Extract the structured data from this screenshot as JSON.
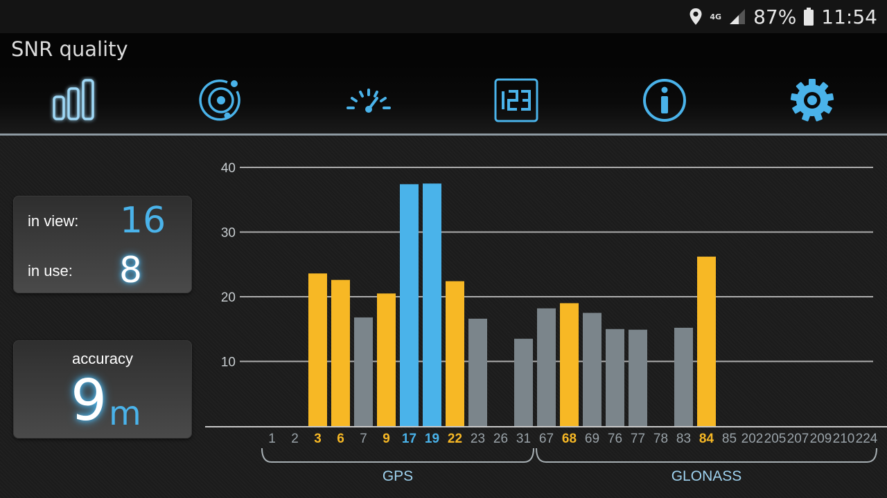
{
  "status_bar": {
    "network": "4G",
    "battery": "87%",
    "time": "11:54",
    "icons": [
      "location-icon",
      "signal-icon",
      "battery-icon"
    ]
  },
  "title": "SNR quality",
  "toolbar": {
    "tabs": [
      {
        "name": "snr-bars-icon",
        "active": true
      },
      {
        "name": "satellite-radar-icon",
        "active": false
      },
      {
        "name": "speedometer-icon",
        "active": false
      },
      {
        "name": "digits-123-icon",
        "active": false
      },
      {
        "name": "info-icon",
        "active": false
      },
      {
        "name": "settings-gear-icon",
        "active": false
      }
    ],
    "accent": "#4ab3ea"
  },
  "stats": {
    "in_view_label": "in view:",
    "in_view_value": "16",
    "in_use_label": "in use:",
    "in_use_value": "8"
  },
  "accuracy": {
    "label": "accuracy",
    "value": "9",
    "unit": "m"
  },
  "chart_data": {
    "type": "bar",
    "y_ticks": [
      10,
      20,
      30,
      40
    ],
    "ylim": [
      0,
      40
    ],
    "grid": true,
    "categories": [
      "1",
      "2",
      "3",
      "6",
      "7",
      "9",
      "17",
      "19",
      "22",
      "23",
      "26",
      "31",
      "67",
      "68",
      "69",
      "76",
      "77",
      "78",
      "83",
      "84",
      "85",
      "202",
      "205",
      "207",
      "209",
      "210",
      "224"
    ],
    "values": [
      0,
      0,
      23.6,
      22.6,
      16.8,
      20.5,
      37.4,
      37.5,
      22.4,
      16.6,
      0,
      13.5,
      18.2,
      19,
      17.5,
      15,
      14.9,
      0,
      15.2,
      26.2,
      0,
      0,
      0,
      0,
      0,
      0,
      0
    ],
    "status": [
      "none",
      "none",
      "used_glonass",
      "used_glonass",
      "unused",
      "used_glonass",
      "used_gps",
      "used_gps",
      "used_glonass",
      "unused",
      "none",
      "unused",
      "unused",
      "used_glonass",
      "unused",
      "unused",
      "unused",
      "none",
      "unused",
      "used_glonass",
      "none",
      "none",
      "none",
      "none",
      "none",
      "none",
      "none"
    ],
    "groups": [
      {
        "name": "GPS",
        "from": 0,
        "to": 11
      },
      {
        "name": "GLONASS",
        "from": 12,
        "to": 26
      }
    ],
    "colors": {
      "used_gps": "#4ab3ea",
      "used_glonass": "#f7b825",
      "unused": "#7b858b",
      "none": "#9aa3a9",
      "grid": "#c8c8c8",
      "label": "#c8cdd0",
      "group_label": "#9fd3f0"
    }
  }
}
